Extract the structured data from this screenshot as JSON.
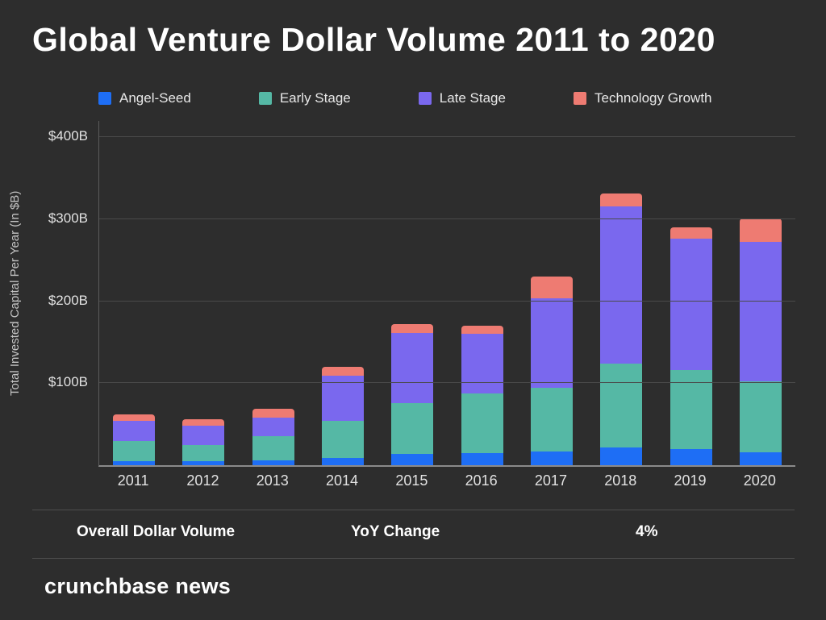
{
  "title": "Global Venture Dollar Volume 2011 to 2020",
  "colors": {
    "background": "#2d2d2d",
    "angel_seed": "#1e6ef5",
    "early_stage": "#55b8a5",
    "late_stage": "#7a68ee",
    "technology_growth": "#ee7b72",
    "grid": "#4a4a4a"
  },
  "chart_data": {
    "type": "bar",
    "stacked": true,
    "title": "Global Venture Dollar Volume 2011 to 2020",
    "ylabel": "Total Invested Capital Per Year (In $B)",
    "xlabel": "",
    "ylim": [
      0,
      420
    ],
    "grid": true,
    "legend_position": "top",
    "ytick_values": [
      100,
      200,
      300,
      400
    ],
    "ytick_labels": [
      "$100B",
      "$200B",
      "$300B",
      "$400B"
    ],
    "categories": [
      "2011",
      "2012",
      "2013",
      "2014",
      "2015",
      "2016",
      "2017",
      "2018",
      "2019",
      "2020"
    ],
    "series": [
      {
        "name": "Angel-Seed",
        "color": "#1e6ef5",
        "values": [
          5,
          5,
          6,
          9,
          14,
          15,
          17,
          22,
          20,
          16
        ]
      },
      {
        "name": "Early Stage",
        "color": "#55b8a5",
        "values": [
          25,
          20,
          29,
          45,
          62,
          73,
          77,
          102,
          96,
          86
        ]
      },
      {
        "name": "Late Stage",
        "color": "#7a68ee",
        "values": [
          24,
          23,
          23,
          55,
          85,
          72,
          110,
          192,
          160,
          170
        ]
      },
      {
        "name": "Technology Growth",
        "color": "#ee7b72",
        "values": [
          8,
          8,
          11,
          11,
          11,
          10,
          26,
          16,
          14,
          29
        ]
      }
    ]
  },
  "summary_row": {
    "overall_label": "Overall Dollar Volume",
    "yoy_label": "YoY Change",
    "yoy_value": "4%"
  },
  "footer": {
    "brand": "crunchbase news"
  }
}
